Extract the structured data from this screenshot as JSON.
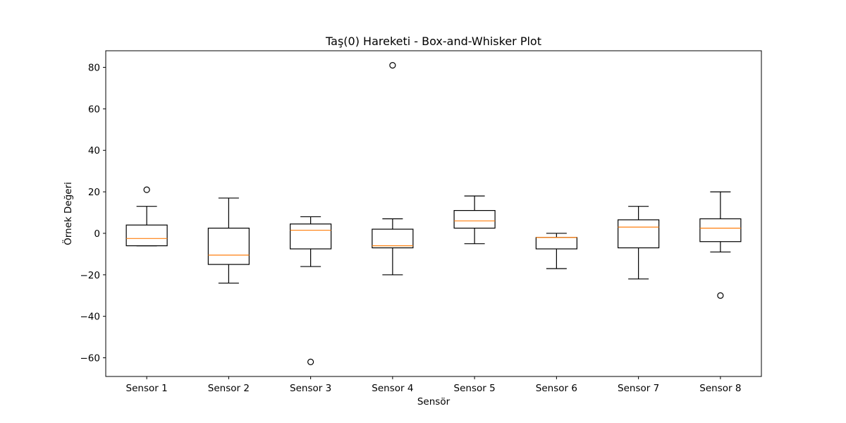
{
  "chart_data": {
    "type": "box",
    "title": "Taş(0) Hareketi - Box-and-Whisker Plot",
    "xlabel": "Sensör",
    "ylabel": "Örnek Değeri",
    "categories": [
      "Sensor 1",
      "Sensor 2",
      "Sensor 3",
      "Sensor 4",
      "Sensor 5",
      "Sensor 6",
      "Sensor 7",
      "Sensor 8"
    ],
    "ylim": [
      -69,
      88
    ],
    "yticks": [
      -60,
      -40,
      -20,
      0,
      20,
      40,
      60,
      80
    ],
    "ytick_labels": [
      "−60",
      "−40",
      "−20",
      "0",
      "20",
      "40",
      "60",
      "80"
    ],
    "grid": false,
    "box_color": "#000000",
    "median_color": "#ff7f0e",
    "boxes": [
      {
        "label": "Sensor 1",
        "whislo": -6,
        "q1": -6,
        "med": -2.5,
        "q3": 4,
        "whishi": 13,
        "fliers": [
          21
        ]
      },
      {
        "label": "Sensor 2",
        "whislo": -24,
        "q1": -15,
        "med": -10.5,
        "q3": 2.5,
        "whishi": 17,
        "fliers": []
      },
      {
        "label": "Sensor 3",
        "whislo": -16,
        "q1": -7.5,
        "med": 1.5,
        "q3": 4.5,
        "whishi": 8,
        "fliers": [
          -62
        ]
      },
      {
        "label": "Sensor 4",
        "whislo": -20,
        "q1": -7,
        "med": -6,
        "q3": 2,
        "whishi": 7,
        "fliers": [
          81
        ]
      },
      {
        "label": "Sensor 5",
        "whislo": -5,
        "q1": 2.5,
        "med": 6,
        "q3": 11,
        "whishi": 18,
        "fliers": []
      },
      {
        "label": "Sensor 6",
        "whislo": -17,
        "q1": -7.5,
        "med": -2,
        "q3": -2,
        "whishi": 0,
        "fliers": []
      },
      {
        "label": "Sensor 7",
        "whislo": -22,
        "q1": -7,
        "med": 3,
        "q3": 6.5,
        "whishi": 13,
        "fliers": []
      },
      {
        "label": "Sensor 8",
        "whislo": -9,
        "q1": -4,
        "med": 2.5,
        "q3": 7,
        "whishi": 20,
        "fliers": [
          -30
        ]
      }
    ]
  }
}
